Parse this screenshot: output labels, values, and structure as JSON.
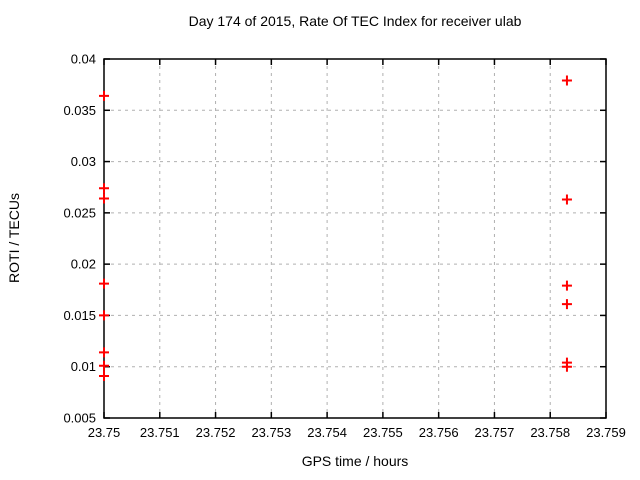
{
  "chart_data": {
    "type": "scatter",
    "title": "Day 174 of 2015, Rate Of TEC Index for receiver ulab",
    "xlabel": "GPS time / hours",
    "ylabel": "ROTI / TECUs",
    "xlim": [
      23.75,
      23.759
    ],
    "ylim": [
      0.005,
      0.04
    ],
    "xticks": [
      23.75,
      23.751,
      23.752,
      23.753,
      23.754,
      23.755,
      23.756,
      23.757,
      23.758,
      23.759
    ],
    "xtick_labels": [
      "23.75",
      "23.751",
      "23.752",
      "23.753",
      "23.754",
      "23.755",
      "23.756",
      "23.757",
      "23.758",
      "23.759"
    ],
    "yticks": [
      0.005,
      0.01,
      0.015,
      0.02,
      0.025,
      0.03,
      0.035,
      0.04
    ],
    "ytick_labels": [
      "0.005",
      "0.01",
      "0.015",
      "0.02",
      "0.025",
      "0.03",
      "0.035",
      "0.04"
    ],
    "grid": true,
    "legend": "none",
    "marker": "plus",
    "series": [
      {
        "name": "ROTI",
        "points": [
          [
            23.75,
            0.0364
          ],
          [
            23.75,
            0.0274
          ],
          [
            23.75,
            0.0264
          ],
          [
            23.75,
            0.0181
          ],
          [
            23.75,
            0.015
          ],
          [
            23.75,
            0.0114
          ],
          [
            23.75,
            0.0101
          ],
          [
            23.75,
            0.0091
          ],
          [
            23.7583,
            0.0379
          ],
          [
            23.7583,
            0.0263
          ],
          [
            23.7583,
            0.0179
          ],
          [
            23.7583,
            0.0161
          ],
          [
            23.7583,
            0.0104
          ],
          [
            23.7583,
            0.01
          ]
        ]
      }
    ]
  },
  "colors": {
    "marker": "#ff0000",
    "grid": "#b0b0b0",
    "axis": "#000000",
    "background": "#ffffff"
  }
}
